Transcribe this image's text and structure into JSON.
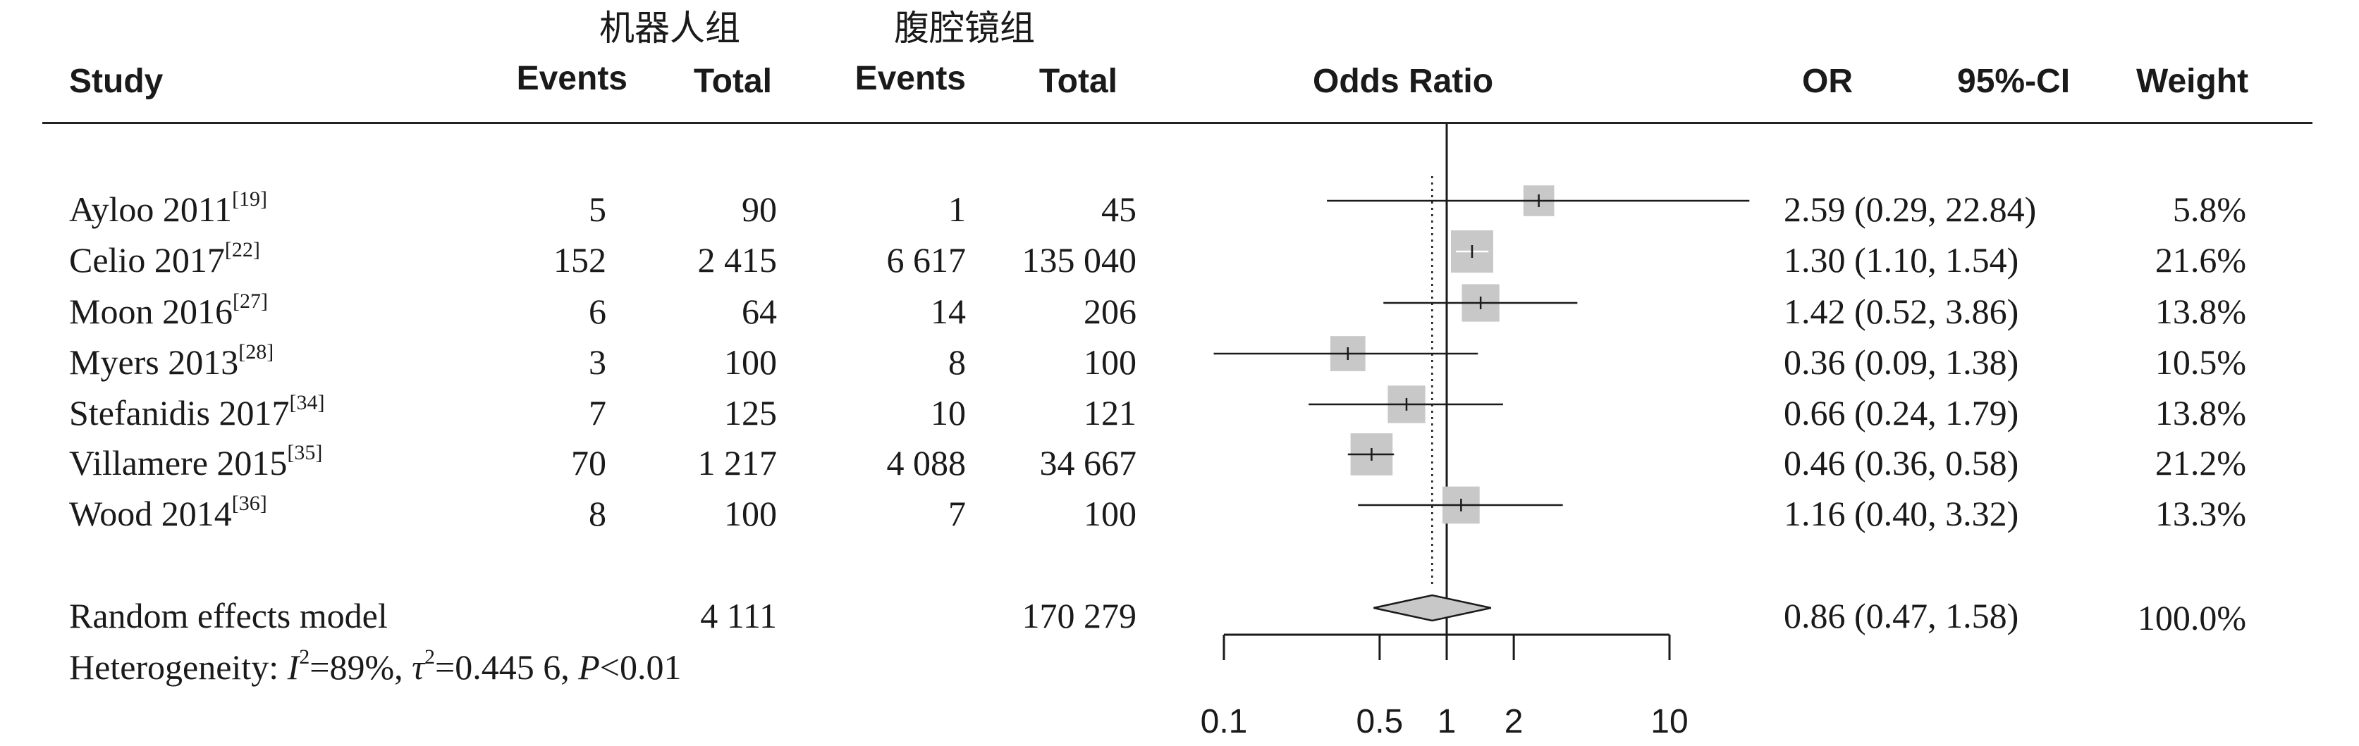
{
  "groups": {
    "robot": "机器人组",
    "laparoscopic": "腹腔镜组"
  },
  "headers": {
    "study": "Study",
    "events1": "Events",
    "total1": "Total",
    "events2": "Events",
    "total2": "Total",
    "odds_ratio": "Odds Ratio",
    "or": "OR",
    "ci": "95%-CI",
    "weight": "Weight"
  },
  "studies": [
    {
      "name": "Ayloo 2011",
      "ref": "[19]",
      "events1": "5",
      "total1": "90",
      "events2": "1",
      "total2": "45",
      "or_ci": "2.59 (0.29, 22.84)",
      "weight": "5.8%"
    },
    {
      "name": "Celio 2017",
      "ref": "[22]",
      "events1": "152",
      "total1": "2 415",
      "events2": "6 617",
      "total2": "135 040",
      "or_ci": "1.30 (1.10, 1.54)",
      "weight": "21.6%"
    },
    {
      "name": "Moon 2016",
      "ref": "[27]",
      "events1": "6",
      "total1": "64",
      "events2": "14",
      "total2": "206",
      "or_ci": "1.42 (0.52, 3.86)",
      "weight": "13.8%"
    },
    {
      "name": "Myers 2013",
      "ref": "[28]",
      "events1": "3",
      "total1": "100",
      "events2": "8",
      "total2": "100",
      "or_ci": "0.36 (0.09, 1.38)",
      "weight": "10.5%"
    },
    {
      "name": "Stefanidis 2017",
      "ref": "[34]",
      "events1": "7",
      "total1": "125",
      "events2": "10",
      "total2": "121",
      "or_ci": "0.66 (0.24, 1.79)",
      "weight": "13.8%"
    },
    {
      "name": "Villamere 2015",
      "ref": "[35]",
      "events1": "70",
      "total1": "1 217",
      "events2": "4 088",
      "total2": "34 667",
      "or_ci": "0.46 (0.36, 0.58)",
      "weight": "21.2%"
    },
    {
      "name": "Wood 2014",
      "ref": "[36]",
      "events1": "8",
      "total1": "100",
      "events2": "7",
      "total2": "100",
      "or_ci": "1.16 (0.40, 3.32)",
      "weight": "13.3%"
    }
  ],
  "summary": {
    "label": "Random effects model",
    "total1": "4 111",
    "total2": "170 279",
    "or_ci": "0.86 (0.47, 1.58)",
    "weight": "100.0%"
  },
  "heterogeneity": {
    "prefix": "Heterogeneity: ",
    "i2_sym": "I",
    "i2_val": "=89%, ",
    "tau_sym": "τ",
    "tau_val": "=0.445 6, ",
    "p_sym": "P",
    "p_val": "<0.01",
    "sq": "2"
  },
  "chart_data": {
    "type": "forest",
    "x_scale": "log",
    "xlim": [
      0.1,
      10
    ],
    "ticks": [
      0.1,
      0.5,
      1,
      2,
      10
    ],
    "tick_labels": [
      "0.1",
      "0.5",
      "1",
      "2",
      "10"
    ],
    "reference_line": 1,
    "pooled_dashed_line": 0.86,
    "studies": [
      {
        "or": 2.59,
        "lo": 0.29,
        "hi": 22.84,
        "weight": 5.8
      },
      {
        "or": 1.3,
        "lo": 1.1,
        "hi": 1.54,
        "weight": 21.6
      },
      {
        "or": 1.42,
        "lo": 0.52,
        "hi": 3.86,
        "weight": 13.8
      },
      {
        "or": 0.36,
        "lo": 0.09,
        "hi": 1.38,
        "weight": 10.5
      },
      {
        "or": 0.66,
        "lo": 0.24,
        "hi": 1.79,
        "weight": 13.8
      },
      {
        "or": 0.46,
        "lo": 0.36,
        "hi": 0.58,
        "weight": 21.2
      },
      {
        "or": 1.16,
        "lo": 0.4,
        "hi": 3.32,
        "weight": 13.3
      }
    ],
    "pooled": {
      "or": 0.86,
      "lo": 0.47,
      "hi": 1.58
    },
    "colors": {
      "box": "#c8c8c8",
      "line": "#1a1a1a",
      "diamond": "#c8c8c8"
    }
  }
}
